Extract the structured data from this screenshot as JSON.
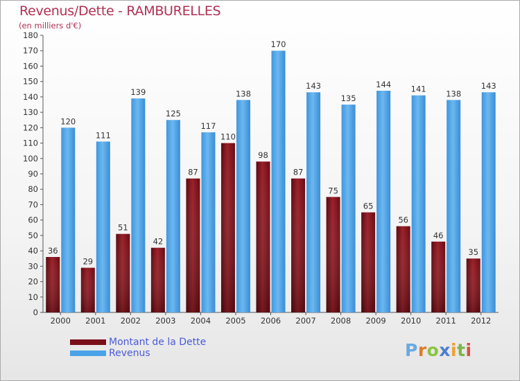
{
  "header": {
    "title": "Revenus/Dette - RAMBURELLES",
    "subtitle": "(en milliers d'€)"
  },
  "legend": {
    "items": [
      {
        "label": "Montant de la Dette",
        "color": "#7a0f1a"
      },
      {
        "label": "Revenus",
        "color": "#4aa3e8"
      }
    ]
  },
  "logo": {
    "text": "Proxiti",
    "letters": [
      "P",
      "r",
      "o",
      "x",
      "i",
      "t",
      "i"
    ],
    "colors": [
      "#6aa9e0",
      "#e07a2a",
      "#8bc43f",
      "#4a7fd0",
      "#f0a030",
      "#7ab648",
      "#d85040"
    ]
  },
  "chart_data": {
    "type": "bar",
    "title": "Revenus/Dette - RAMBURELLES",
    "subtitle": "(en milliers d'€)",
    "categories": [
      "2000",
      "2001",
      "2002",
      "2003",
      "2004",
      "2005",
      "2006",
      "2007",
      "2008",
      "2009",
      "2010",
      "2011",
      "2012"
    ],
    "series": [
      {
        "name": "Montant de la Dette",
        "color": "#7a0f1a",
        "values": [
          36,
          29,
          51,
          42,
          87,
          110,
          98,
          87,
          75,
          65,
          56,
          46,
          35
        ]
      },
      {
        "name": "Revenus",
        "color": "#4aa3e8",
        "values": [
          120,
          111,
          139,
          125,
          117,
          138,
          170,
          143,
          135,
          144,
          141,
          138,
          143
        ]
      }
    ],
    "ylim": [
      0,
      180
    ],
    "ytick_step": 10,
    "grid": false,
    "legend_position": "bottom-left"
  }
}
